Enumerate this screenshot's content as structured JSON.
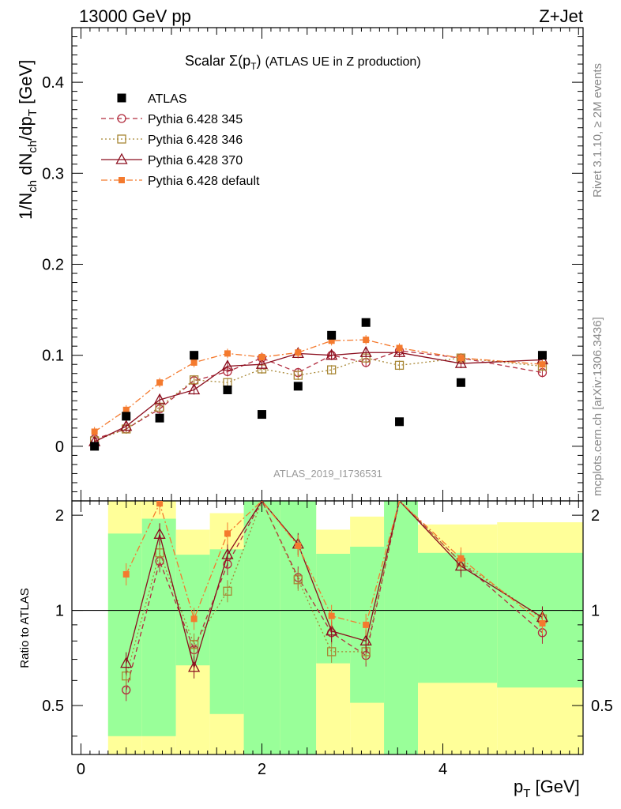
{
  "header": {
    "energy": "13000 GeV pp",
    "process": "Z+Jet",
    "side_rivet": "Rivet 3.1.10, ≥ 2M events",
    "side_mcplots": "mcplots.cern.ch [arXiv:1306.3436]",
    "analysis_id": "ATLAS_2019_I1736531"
  },
  "chart_data": {
    "type": "scatter",
    "title": "Scalar Σ(p_T) (ATLAS UE in Z production)",
    "title_main": "Scalar ",
    "title_sigma": "Σ(p",
    "title_sub": "T",
    "title_close": ")",
    "title_rest": "(ATLAS UE in Z production)",
    "ylabel": "1/N_ch dN_ch/dp_T [GeV]",
    "ylabel_parts": {
      "a": "1/N",
      "a_sub": "ch",
      "b": " dN",
      "b_sub": "ch",
      "c": "/dp",
      "c_sub": "T",
      "d": " [GeV]"
    },
    "xlabel": "p_T [GeV]",
    "xlabel_parts": {
      "a": "p",
      "a_sub": "T",
      "b": " [GeV]"
    },
    "ratio_ylabel": "Ratio to ATLAS",
    "xlim": [
      -0.1,
      5.55
    ],
    "ylim": [
      -0.06,
      0.46
    ],
    "ratio_ylim": [
      0.35,
      2.22
    ],
    "x_ticks": [
      0,
      2,
      4
    ],
    "x_tick_labels": [
      "0",
      "2",
      "4"
    ],
    "y_ticks": [
      0,
      0.1,
      0.2,
      0.3,
      0.4
    ],
    "y_tick_labels": [
      "0",
      "0.1",
      "0.2",
      "0.3",
      "0.4"
    ],
    "ratio_ticks": [
      0.5,
      1,
      2
    ],
    "ratio_tick_labels": [
      "0.5",
      "1",
      "2"
    ],
    "bin_edges": [
      0.3,
      0.675,
      1.05,
      1.425,
      1.8,
      2.2,
      2.6,
      2.975,
      3.35,
      3.725,
      4.6,
      5.55
    ],
    "band_inner": [
      [
        0.4,
        1.75
      ],
      [
        0.4,
        1.95
      ],
      [
        0.67,
        1.5
      ],
      [
        0.47,
        1.56
      ],
      [
        0.35,
        2.5
      ],
      [
        0.35,
        2.5
      ],
      [
        0.68,
        1.51
      ],
      [
        0.51,
        1.59
      ],
      [
        0.35,
        2.5
      ],
      [
        0.59,
        1.52
      ],
      [
        0.57,
        1.52
      ]
    ],
    "band_outer": [
      [
        0.35,
        2.22
      ],
      [
        0.35,
        2.22
      ],
      [
        0.35,
        1.8
      ],
      [
        0.35,
        2.03
      ],
      [
        0.35,
        2.22
      ],
      [
        0.35,
        2.22
      ],
      [
        0.35,
        1.8
      ],
      [
        0.35,
        1.98
      ],
      [
        0.35,
        2.22
      ],
      [
        0.35,
        1.87
      ],
      [
        0.35,
        1.9
      ]
    ],
    "legend": [
      {
        "name": "ATLAS",
        "color": "#000000"
      },
      {
        "name": "Pythia 6.428 345",
        "color": "#b22d3f"
      },
      {
        "name": "Pythia 6.428 346",
        "color": "#a88735"
      },
      {
        "name": "Pythia 6.428 370",
        "color": "#8b0e1e"
      },
      {
        "name": "Pythia 6.428 default",
        "color": "#f47a2e"
      }
    ],
    "x": [
      0.15,
      0.5,
      0.87,
      1.25,
      1.62,
      2.0,
      2.4,
      2.77,
      3.15,
      3.52,
      4.2,
      5.1
    ],
    "atlas": [
      0.0,
      0.033,
      0.031,
      0.1,
      0.062,
      0.035,
      0.066,
      0.122,
      0.136,
      0.027,
      0.07,
      0.1
    ],
    "series": [
      {
        "name": "Pythia 6.428 345",
        "color": "#b22d3f",
        "marker": "circle",
        "dash": "6,4",
        "values": [
          0.008,
          0.019,
          0.041,
          0.072,
          0.082,
          0.097,
          0.081,
          0.1,
          0.092,
          0.105,
          0.097,
          0.081
        ],
        "ratio": [
          null,
          0.56,
          1.43,
          0.75,
          1.4,
          2.4,
          1.27,
          0.85,
          0.72,
          2.5,
          1.42,
          0.85
        ]
      },
      {
        "name": "Pythia 6.428 346",
        "color": "#a88735",
        "marker": "square",
        "dash": "2,3",
        "values": [
          0.006,
          0.019,
          0.043,
          0.073,
          0.07,
          0.085,
          0.078,
          0.084,
          0.097,
          0.089,
          0.097,
          0.088
        ],
        "ratio": [
          null,
          0.62,
          1.52,
          0.78,
          1.15,
          2.4,
          1.25,
          0.74,
          0.74,
          2.5,
          1.42,
          0.94
        ]
      },
      {
        "name": "Pythia 6.428 370",
        "color": "#8b0e1e",
        "marker": "triangle",
        "dash": "",
        "values": [
          0.005,
          0.022,
          0.051,
          0.062,
          0.088,
          0.09,
          0.102,
          0.1,
          0.103,
          0.103,
          0.091,
          0.095
        ],
        "ratio": [
          null,
          0.68,
          1.74,
          0.66,
          1.5,
          2.5,
          1.62,
          0.86,
          0.8,
          2.5,
          1.38,
          0.95
        ]
      },
      {
        "name": "Pythia 6.428 default",
        "color": "#f47a2e",
        "marker": "smallsquare",
        "dash": "8,3,2,3",
        "values": [
          0.016,
          0.04,
          0.07,
          0.092,
          0.102,
          0.098,
          0.103,
          0.116,
          0.117,
          0.108,
          0.097,
          0.09
        ],
        "ratio": [
          null,
          1.3,
          2.18,
          0.94,
          1.75,
          2.5,
          1.6,
          0.96,
          0.9,
          2.5,
          1.46,
          0.91
        ]
      }
    ]
  }
}
